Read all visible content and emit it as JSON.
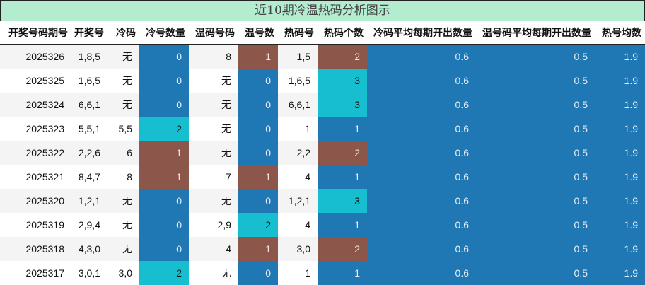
{
  "title": "近10期冷温热码分析图示",
  "colors": {
    "cold": "#1f77b4",
    "warm": "#17becf",
    "hot": "#8c564b",
    "title_bg": "#b3ecce"
  },
  "headers": [
    "开奖号码期号",
    "开奖号",
    "冷码",
    "冷号数量",
    "温码号码",
    "温号数",
    "热码号",
    "热码个数",
    "冷码平均每期开出数量",
    "温号码平均每期开出数量",
    "热号均数"
  ],
  "rows": [
    {
      "period": "2025326",
      "numbers": "1,8,5",
      "cold": "无",
      "cold_count": "0",
      "warm": "8",
      "warm_count": "1",
      "hot": "1,5",
      "hot_count": "2",
      "cold_avg": "0.6",
      "warm_avg": "0.5",
      "hot_avg": "1.9",
      "cc_color": "blue",
      "wc_color": "brown",
      "hc_color": "brown"
    },
    {
      "period": "2025325",
      "numbers": "1,6,5",
      "cold": "无",
      "cold_count": "0",
      "warm": "无",
      "warm_count": "0",
      "hot": "1,6,5",
      "hot_count": "3",
      "cold_avg": "0.6",
      "warm_avg": "0.5",
      "hot_avg": "1.9",
      "cc_color": "blue",
      "wc_color": "blue",
      "hc_color": "cyan"
    },
    {
      "period": "2025324",
      "numbers": "6,6,1",
      "cold": "无",
      "cold_count": "0",
      "warm": "无",
      "warm_count": "0",
      "hot": "6,6,1",
      "hot_count": "3",
      "cold_avg": "0.6",
      "warm_avg": "0.5",
      "hot_avg": "1.9",
      "cc_color": "blue",
      "wc_color": "blue",
      "hc_color": "cyan"
    },
    {
      "period": "2025323",
      "numbers": "5,5,1",
      "cold": "5,5",
      "cold_count": "2",
      "warm": "无",
      "warm_count": "0",
      "hot": "1",
      "hot_count": "1",
      "cold_avg": "0.6",
      "warm_avg": "0.5",
      "hot_avg": "1.9",
      "cc_color": "cyan",
      "wc_color": "blue",
      "hc_color": "blue"
    },
    {
      "period": "2025322",
      "numbers": "2,2,6",
      "cold": "6",
      "cold_count": "1",
      "warm": "无",
      "warm_count": "0",
      "hot": "2,2",
      "hot_count": "2",
      "cold_avg": "0.6",
      "warm_avg": "0.5",
      "hot_avg": "1.9",
      "cc_color": "brown",
      "wc_color": "blue",
      "hc_color": "brown"
    },
    {
      "period": "2025321",
      "numbers": "8,4,7",
      "cold": "8",
      "cold_count": "1",
      "warm": "7",
      "warm_count": "1",
      "hot": "4",
      "hot_count": "1",
      "cold_avg": "0.6",
      "warm_avg": "0.5",
      "hot_avg": "1.9",
      "cc_color": "brown",
      "wc_color": "brown",
      "hc_color": "blue"
    },
    {
      "period": "2025320",
      "numbers": "1,2,1",
      "cold": "无",
      "cold_count": "0",
      "warm": "无",
      "warm_count": "0",
      "hot": "1,2,1",
      "hot_count": "3",
      "cold_avg": "0.6",
      "warm_avg": "0.5",
      "hot_avg": "1.9",
      "cc_color": "blue",
      "wc_color": "blue",
      "hc_color": "cyan"
    },
    {
      "period": "2025319",
      "numbers": "2,9,4",
      "cold": "无",
      "cold_count": "0",
      "warm": "2,9",
      "warm_count": "2",
      "hot": "4",
      "hot_count": "1",
      "cold_avg": "0.6",
      "warm_avg": "0.5",
      "hot_avg": "1.9",
      "cc_color": "blue",
      "wc_color": "cyan",
      "hc_color": "blue"
    },
    {
      "period": "2025318",
      "numbers": "4,3,0",
      "cold": "无",
      "cold_count": "0",
      "warm": "4",
      "warm_count": "1",
      "hot": "3,0",
      "hot_count": "2",
      "cold_avg": "0.6",
      "warm_avg": "0.5",
      "hot_avg": "1.9",
      "cc_color": "blue",
      "wc_color": "brown",
      "hc_color": "brown"
    },
    {
      "period": "2025317",
      "numbers": "3,0,1",
      "cold": "3,0",
      "cold_count": "2",
      "warm": "无",
      "warm_count": "0",
      "hot": "1",
      "hot_count": "1",
      "cold_avg": "0.6",
      "warm_avg": "0.5",
      "hot_avg": "1.9",
      "cc_color": "cyan",
      "wc_color": "blue",
      "hc_color": "blue"
    }
  ]
}
